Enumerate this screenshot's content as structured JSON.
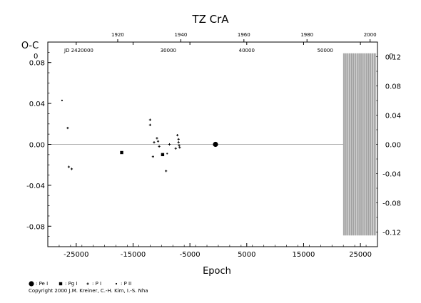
{
  "chart_data": {
    "type": "scatter",
    "title": "TZ CrA",
    "xlabel": "Epoch",
    "ylabel": "O-C",
    "xlim": [
      -30000,
      28000
    ],
    "ylim": [
      -0.1,
      0.1
    ],
    "right_ylim": [
      -0.14,
      0.14
    ],
    "bottom_ticks": [
      "-25000",
      "-15000",
      "-5000",
      "5000",
      "15000",
      "25000"
    ],
    "bottom_tick_values": [
      -25000,
      -15000,
      -5000,
      5000,
      15000,
      25000
    ],
    "left_ticks": [
      "0.08",
      "0.04",
      "0.00",
      "-0.04",
      "-0.08"
    ],
    "left_tick_values": [
      0.08,
      0.04,
      0.0,
      -0.04,
      -0.08
    ],
    "right_ticks": [
      "0.12",
      "0.08",
      "0.04",
      "0.00",
      "-0.04",
      "-0.08",
      "-0.12"
    ],
    "right_tick_values": [
      0.12,
      0.08,
      0.04,
      0.0,
      -0.04,
      -0.08,
      -0.12
    ],
    "top_year_ticks": [
      "1920",
      "1940",
      "1960",
      "1980",
      "2000"
    ],
    "top_year_epochs": [
      -17700,
      -6600,
      4500,
      15600,
      26700
    ],
    "top_jd_label": "JD 2420000",
    "top_jd_ticks": [
      "30000",
      "40000",
      "50000"
    ],
    "top_jd_epochs": [
      -8800,
      5000,
      18800
    ],
    "left_corner_exp": "0",
    "right_corner_exp": "0",
    "series": [
      {
        "name": "Pe I",
        "marker": "large-circle",
        "points": [
          [
            -500,
            0.0
          ]
        ]
      },
      {
        "name": "Pg I",
        "marker": "square",
        "points": [
          [
            -17000,
            -0.008
          ],
          [
            -9800,
            -0.01
          ]
        ]
      },
      {
        "name": "P I",
        "marker": "plus",
        "points": [
          [
            -26500,
            0.016
          ],
          [
            -26300,
            -0.022
          ],
          [
            -25800,
            -0.024
          ],
          [
            -12000,
            0.024
          ],
          [
            -12000,
            0.019
          ],
          [
            -11300,
            0.002
          ],
          [
            -10800,
            0.006
          ],
          [
            -10600,
            0.003
          ],
          [
            -10400,
            -0.002
          ],
          [
            -11500,
            -0.012
          ],
          [
            -9200,
            -0.026
          ],
          [
            -8600,
            0.0
          ],
          [
            -7500,
            -0.004
          ],
          [
            -7200,
            0.009
          ],
          [
            -7000,
            0.005
          ],
          [
            -7000,
            0.002
          ],
          [
            -6900,
            -0.001
          ],
          [
            -6800,
            -0.003
          ]
        ]
      },
      {
        "name": "P II",
        "marker": "dot",
        "points": [
          [
            -27500,
            0.043
          ],
          [
            -9000,
            -0.009
          ]
        ]
      }
    ],
    "modern_points_band": {
      "x_from": 22000,
      "x_to": 27800,
      "y_from": -0.089,
      "y_to": 0.089
    },
    "legend": {
      "placement": "bottom-left",
      "labels": [
        ": Pe I",
        ": Pg I",
        ": P I",
        ": P II"
      ]
    },
    "colors": {
      "data": "#000000",
      "grid": "#999999"
    }
  },
  "copyright": "Copyright 2000 J.M. Kreiner, C.-H. Kim, I.-S. Nha"
}
